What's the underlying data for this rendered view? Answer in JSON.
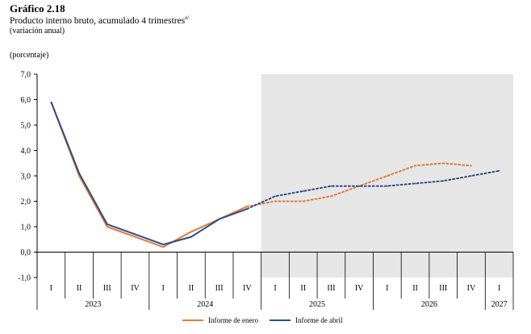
{
  "header": {
    "title": "Gráfico 2.18",
    "subtitle": "Producto interno bruto, acumulado 4 trimestres",
    "subtitle_sup": "e/",
    "note": "(variación anual)",
    "unit": "(porcentaje)"
  },
  "chart_data": {
    "type": "line",
    "title": "Gráfico 2.18",
    "ylabel": "(porcentaje)",
    "ylim": [
      -1,
      7
    ],
    "yticks": [
      "7,0",
      "6,0",
      "5,0",
      "4,0",
      "3,0",
      "2,0",
      "1,0",
      "0,0",
      "-1,0"
    ],
    "categories": [
      "I",
      "II",
      "III",
      "IV",
      "I",
      "II",
      "III",
      "IV",
      "I",
      "II",
      "III",
      "IV",
      "I",
      "II",
      "III",
      "IV",
      "I"
    ],
    "years": [
      {
        "label": "2023",
        "start": 0,
        "count": 4
      },
      {
        "label": "2024",
        "start": 4,
        "count": 4
      },
      {
        "label": "2025",
        "start": 8,
        "count": 4
      },
      {
        "label": "2026",
        "start": 12,
        "count": 4
      },
      {
        "label": "2027",
        "start": 16,
        "count": 1
      }
    ],
    "forecast_start_index": 8,
    "shading_color": "#e6e6e6",
    "series": [
      {
        "name": "Informe de enero",
        "color": "#e07b39",
        "observed_until": 7,
        "values": [
          5.9,
          3.0,
          1.0,
          0.6,
          0.2,
          0.8,
          1.3,
          1.8,
          2.0,
          2.0,
          2.2,
          2.6,
          3.0,
          3.4,
          3.5,
          3.4,
          null
        ]
      },
      {
        "name": "Informe de abril",
        "color": "#2f4b8a",
        "observed_until": 7,
        "values": [
          5.9,
          3.1,
          1.1,
          0.7,
          0.3,
          0.6,
          1.3,
          1.7,
          2.2,
          2.4,
          2.6,
          2.6,
          2.6,
          2.7,
          2.8,
          3.0,
          3.2
        ]
      }
    ]
  }
}
